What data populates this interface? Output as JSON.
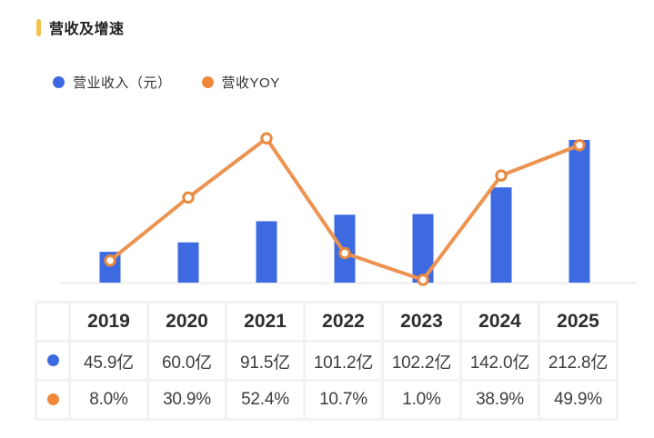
{
  "header": {
    "title": "营收及增速"
  },
  "legend": [
    {
      "label": "营业收入（元）",
      "color": "#3D6AE1"
    },
    {
      "label": "营收YOY",
      "color": "#F0883B"
    }
  ],
  "colors": {
    "accent": "#F2C24A",
    "bar": "#3D6AE1",
    "line": "#ED9351",
    "marker_stroke": "#E8893E",
    "marker_fill": "#FFFFFF",
    "baseline": "#EDEDED"
  },
  "chart_data": {
    "type": "bar+line",
    "title": "营收及增速",
    "categories": [
      "2019",
      "2020",
      "2021",
      "2022",
      "2023",
      "2024",
      "2025"
    ],
    "series": [
      {
        "name": "营业收入（元）",
        "type": "bar",
        "unit": "亿",
        "color": "#3D6AE1",
        "values": [
          45.9,
          60.0,
          91.5,
          101.2,
          102.2,
          142.0,
          212.8
        ]
      },
      {
        "name": "营收YOY",
        "type": "line",
        "unit": "%",
        "color": "#ED9351",
        "values": [
          8.0,
          30.9,
          52.4,
          10.7,
          1.0,
          38.9,
          49.9
        ]
      }
    ],
    "legend_position": "top",
    "grid": false,
    "x_axis_labels_shown_as": "table-header",
    "y_axis": "hidden"
  },
  "table": {
    "years": [
      "2019",
      "2020",
      "2021",
      "2022",
      "2023",
      "2024",
      "2025"
    ],
    "rows": [
      {
        "series": "营业收入（元）",
        "dot_color": "#3D6AE1",
        "values": [
          "45.9亿",
          "60.0亿",
          "91.5亿",
          "101.2亿",
          "102.2亿",
          "142.0亿",
          "212.8亿"
        ]
      },
      {
        "series": "营收YOY",
        "dot_color": "#F0883B",
        "values": [
          "8.0%",
          "30.9%",
          "52.4%",
          "10.7%",
          "1.0%",
          "38.9%",
          "49.9%"
        ]
      }
    ]
  }
}
